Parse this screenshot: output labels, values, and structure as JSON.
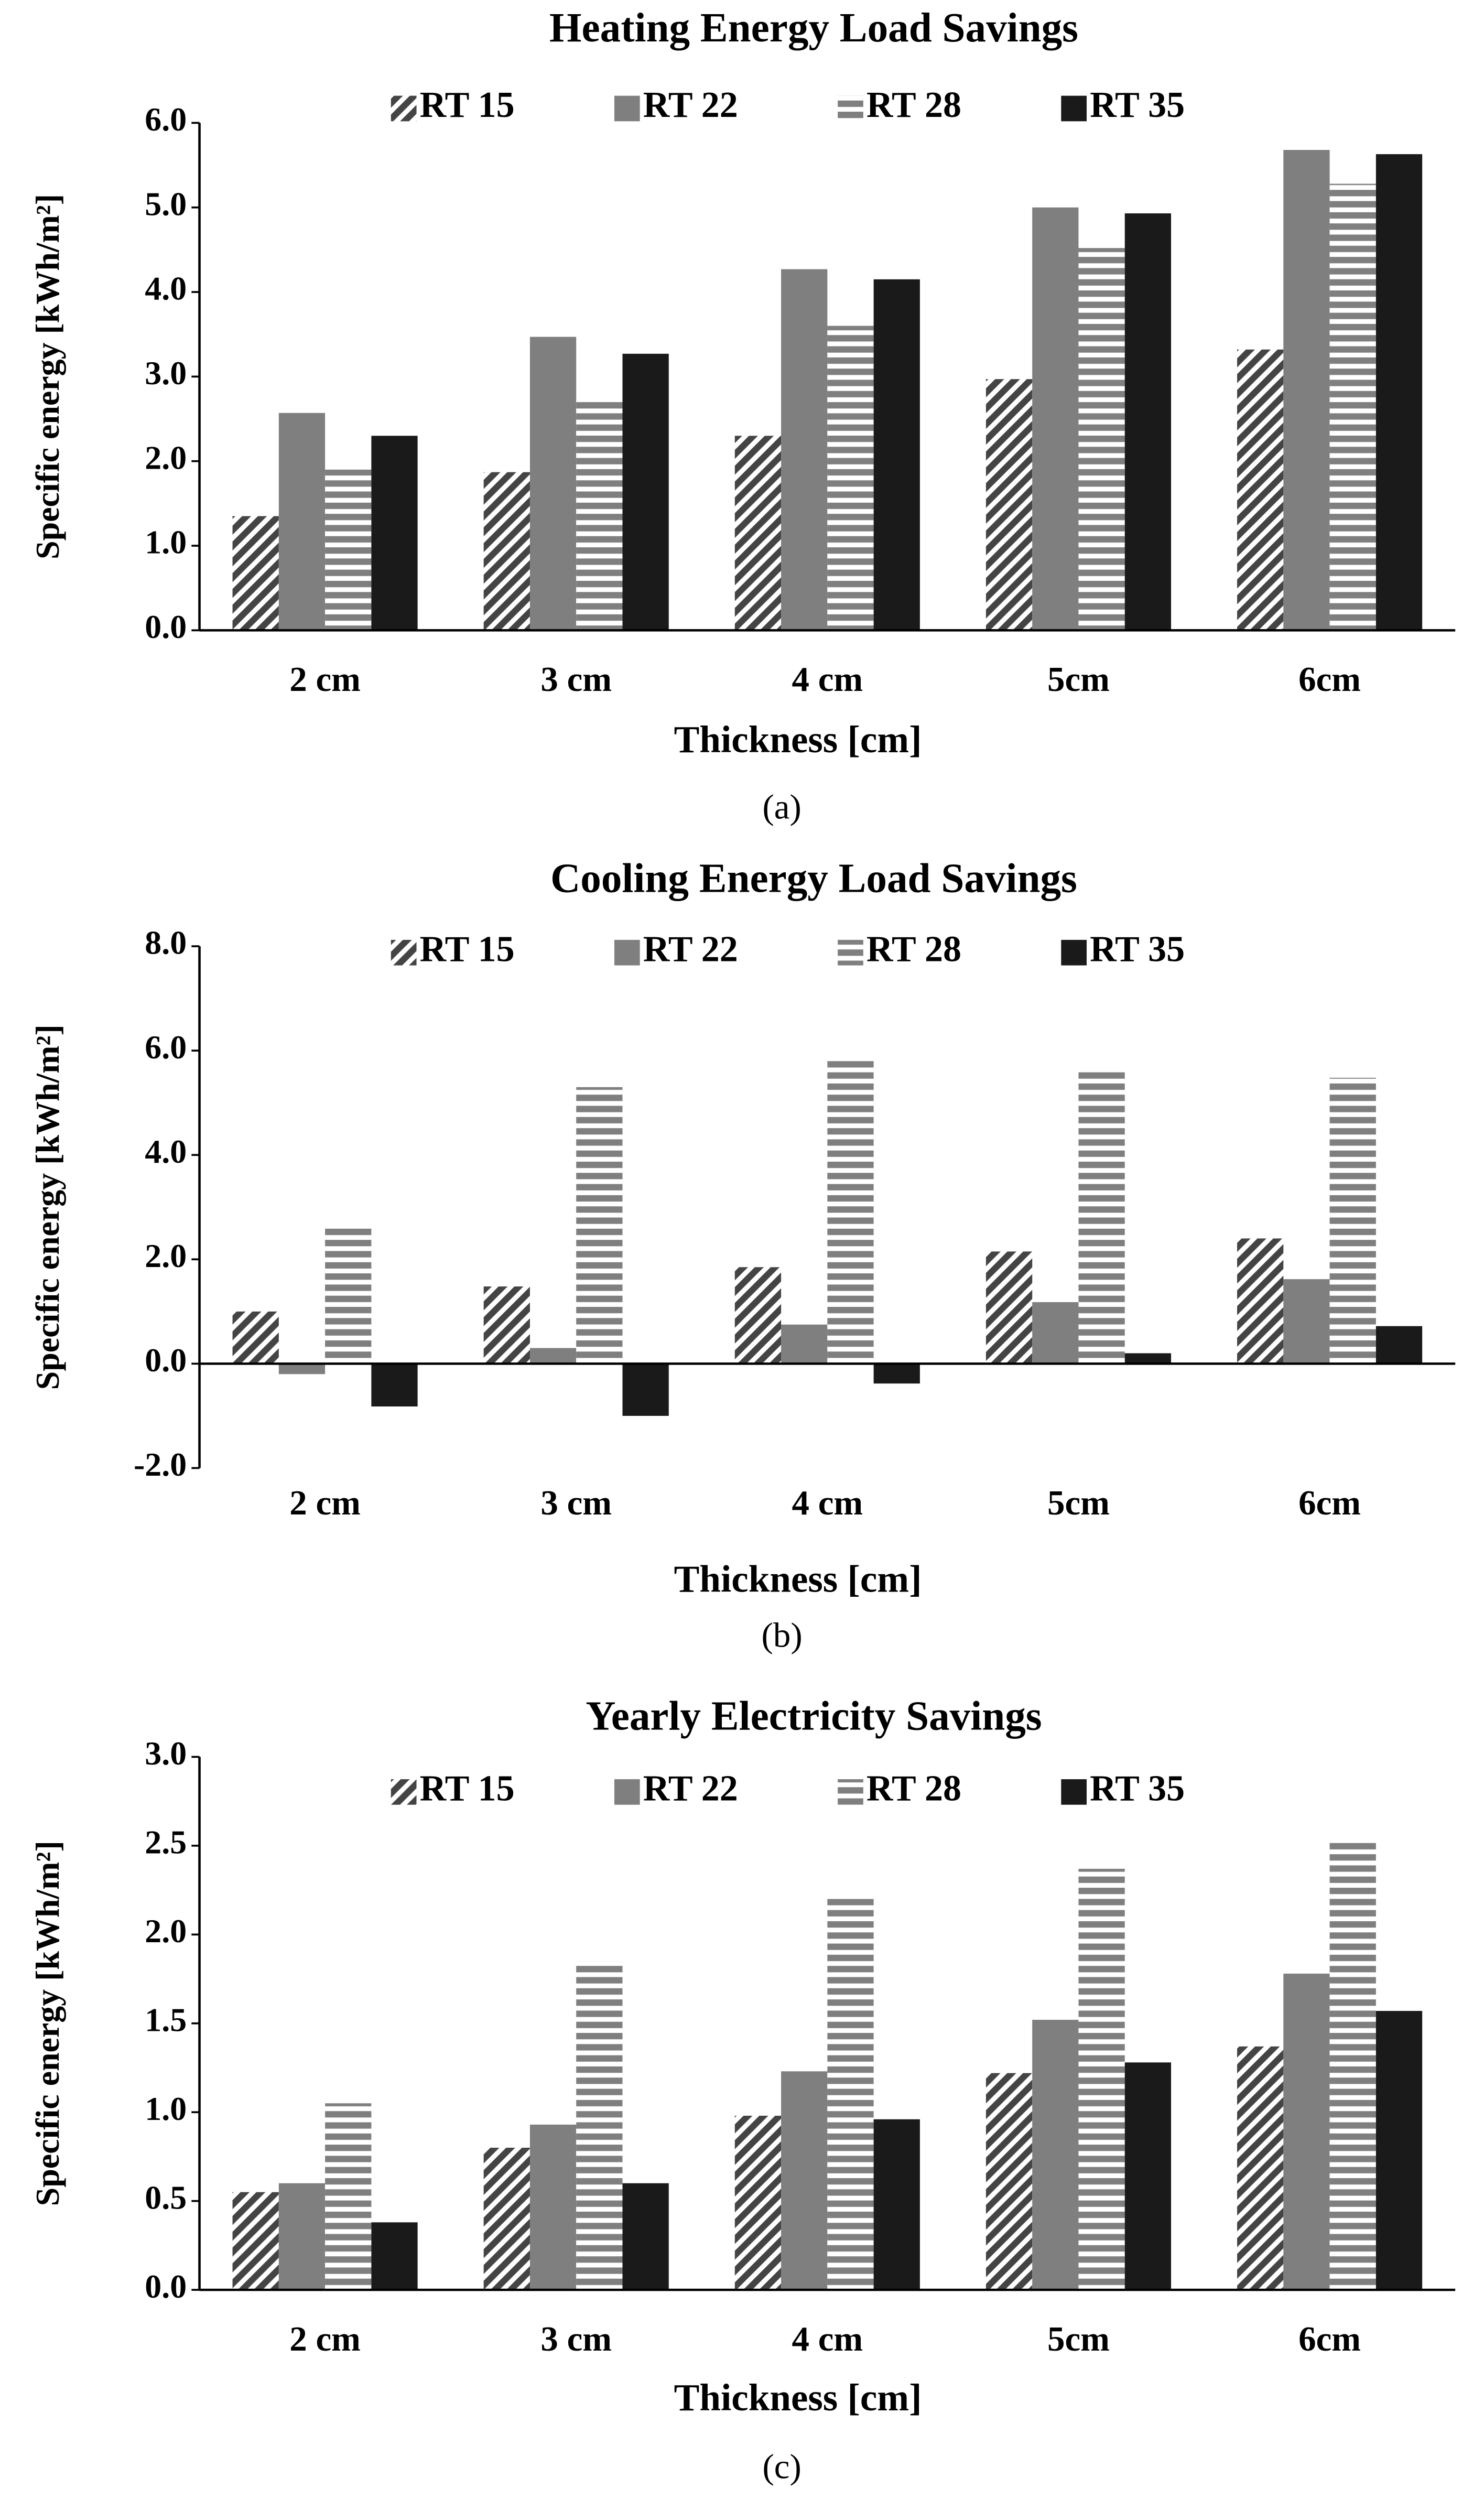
{
  "chart_data": [
    {
      "type": "bar",
      "title": "Heating Energy Load Savings",
      "x_label": "Thickness [cm]",
      "y_label": "Specific energy [kWh/m²]",
      "caption": "(a)",
      "categories": [
        "2 cm",
        "3 cm",
        "4 cm",
        "5cm",
        "6cm"
      ],
      "series": [
        {
          "name": "RT 15",
          "color": "#444444",
          "pattern": "diagonal",
          "values": [
            1.35,
            1.87,
            2.3,
            2.97,
            3.32
          ]
        },
        {
          "name": "RT 22",
          "color": "#7f7f7f",
          "pattern": "solid",
          "values": [
            2.57,
            3.47,
            4.27,
            5.0,
            5.68
          ]
        },
        {
          "name": "RT 28",
          "color": "#7f7f7f",
          "pattern": "horizontal",
          "values": [
            1.9,
            2.72,
            3.6,
            4.52,
            5.28
          ]
        },
        {
          "name": "RT 35",
          "color": "#1a1a1a",
          "pattern": "solid",
          "values": [
            2.3,
            3.27,
            4.15,
            4.93,
            5.63
          ]
        }
      ],
      "ylim": [
        0,
        6
      ],
      "yticks": [
        {
          "value": 0,
          "label": "0.0"
        },
        {
          "value": 1,
          "label": "1.0"
        },
        {
          "value": 2,
          "label": "2.0"
        },
        {
          "value": 3,
          "label": "3.0"
        },
        {
          "value": 4,
          "label": "4.0"
        },
        {
          "value": 5,
          "label": "5.0"
        },
        {
          "value": 6,
          "label": "6.0"
        }
      ],
      "grid": false,
      "legend": "top"
    },
    {
      "type": "bar",
      "title": "Cooling Energy Load Savings",
      "x_label": "Thickness [cm]",
      "y_label": "Specific energy [kWh/m²]",
      "caption": "(b)",
      "categories": [
        "2 cm",
        "3 cm",
        "4 cm",
        "5cm",
        "6cm"
      ],
      "series": [
        {
          "name": "RT 15",
          "color": "#444444",
          "pattern": "diagonal",
          "values": [
            1.0,
            1.48,
            1.85,
            2.15,
            2.4
          ]
        },
        {
          "name": "RT 22",
          "color": "#7f7f7f",
          "pattern": "solid",
          "values": [
            -0.2,
            0.3,
            0.75,
            1.18,
            1.62
          ]
        },
        {
          "name": "RT 28",
          "color": "#7f7f7f",
          "pattern": "horizontal",
          "values": [
            2.6,
            5.3,
            5.85,
            5.6,
            5.48
          ]
        },
        {
          "name": "RT 35",
          "color": "#1a1a1a",
          "pattern": "solid",
          "values": [
            -0.82,
            -1.0,
            -0.38,
            0.2,
            0.72
          ]
        }
      ],
      "ylim": [
        -2,
        8
      ],
      "yticks": [
        {
          "value": -2,
          "label": "-2.0"
        },
        {
          "value": 0,
          "label": "0.0"
        },
        {
          "value": 2,
          "label": "2.0"
        },
        {
          "value": 4,
          "label": "4.0"
        },
        {
          "value": 6,
          "label": "6.0"
        },
        {
          "value": 8,
          "label": "8.0"
        }
      ],
      "grid": false,
      "legend": "top"
    },
    {
      "type": "bar",
      "title": "Yearly Electricity Savings",
      "x_label": "Thickness [cm]",
      "y_label": "Specific energy [kWh/m²]",
      "caption": "(c)",
      "categories": [
        "2 cm",
        "3 cm",
        "4 cm",
        "5cm",
        "6cm"
      ],
      "series": [
        {
          "name": "RT 15",
          "color": "#444444",
          "pattern": "diagonal",
          "values": [
            0.55,
            0.8,
            0.98,
            1.22,
            1.37
          ]
        },
        {
          "name": "RT 22",
          "color": "#7f7f7f",
          "pattern": "solid",
          "values": [
            0.6,
            0.93,
            1.23,
            1.52,
            1.78
          ]
        },
        {
          "name": "RT 28",
          "color": "#7f7f7f",
          "pattern": "horizontal",
          "values": [
            1.05,
            1.85,
            2.2,
            2.37,
            2.52
          ]
        },
        {
          "name": "RT 35",
          "color": "#1a1a1a",
          "pattern": "solid",
          "values": [
            0.38,
            0.6,
            0.96,
            1.28,
            1.57
          ]
        }
      ],
      "ylim": [
        0,
        3
      ],
      "yticks": [
        {
          "value": 0,
          "label": "0.0"
        },
        {
          "value": 0.5,
          "label": "0.5"
        },
        {
          "value": 1,
          "label": "1.0"
        },
        {
          "value": 1.5,
          "label": "1.5"
        },
        {
          "value": 2,
          "label": "2.0"
        },
        {
          "value": 2.5,
          "label": "2.5"
        },
        {
          "value": 3,
          "label": "3.0"
        }
      ],
      "grid": false,
      "legend": "top"
    }
  ]
}
